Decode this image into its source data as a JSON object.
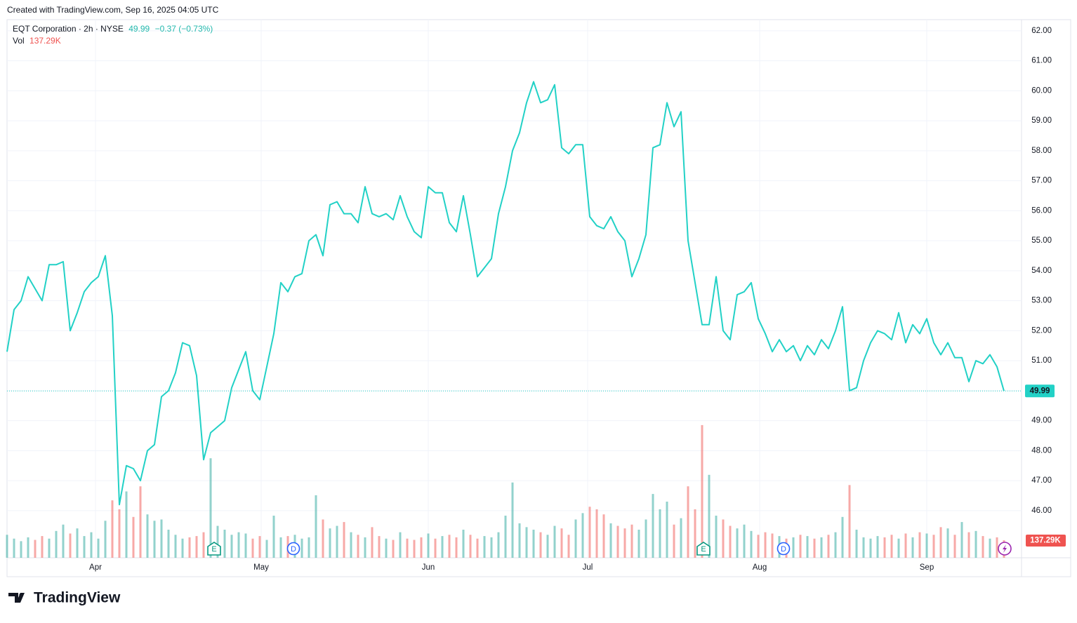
{
  "created": "Created with TradingView.com, Sep 16, 2025 04:05 UTC",
  "brand": "TradingView",
  "chart_data": {
    "type": "line",
    "title": "EQT Corporation · 2h · NYSE",
    "change": "−0.37 (−0.73%)",
    "color": "#22d1c6",
    "grid": true,
    "x": [
      0,
      1,
      2,
      3,
      4,
      5,
      6,
      7,
      8,
      9,
      10,
      11,
      12,
      13,
      14,
      15,
      16,
      17,
      18,
      19,
      20,
      21,
      22,
      23,
      24,
      25,
      26,
      27,
      28,
      29,
      30,
      31,
      32,
      33,
      34,
      35,
      36,
      37,
      38,
      39,
      40,
      41,
      42,
      43,
      44,
      45,
      46,
      47,
      48,
      49,
      50,
      51,
      52,
      53,
      54,
      55,
      56,
      57,
      58,
      59,
      60,
      61,
      62,
      63,
      64,
      65,
      66,
      67,
      68,
      69,
      70,
      71,
      72,
      73,
      74,
      75,
      76,
      77,
      78,
      79,
      80,
      81,
      82,
      83,
      84,
      85,
      86,
      87,
      88,
      89,
      90,
      91,
      92,
      93,
      94,
      95,
      96,
      97,
      98,
      99,
      100,
      101,
      102,
      103,
      104,
      105,
      106,
      107,
      108,
      109,
      110,
      111,
      112,
      113,
      114,
      115,
      116,
      117,
      118,
      119,
      120,
      121,
      122,
      123,
      124,
      125,
      126,
      127,
      128,
      129,
      130,
      131,
      132,
      133,
      134,
      135,
      136,
      137,
      138,
      139,
      140,
      141,
      142
    ],
    "values": [
      51.3,
      52.7,
      53.0,
      53.8,
      53.4,
      53.0,
      54.2,
      54.2,
      54.3,
      52.0,
      52.6,
      53.3,
      53.6,
      53.8,
      54.5,
      52.5,
      46.2,
      47.5,
      47.4,
      47.0,
      48.0,
      48.2,
      49.8,
      50.0,
      50.6,
      51.6,
      51.5,
      50.5,
      47.7,
      48.6,
      48.8,
      49.0,
      50.1,
      50.7,
      51.3,
      50.0,
      49.7,
      50.8,
      51.9,
      53.6,
      53.3,
      53.8,
      53.9,
      55.0,
      55.2,
      54.5,
      56.2,
      56.3,
      55.9,
      55.9,
      55.6,
      56.8,
      55.9,
      55.8,
      55.9,
      55.7,
      56.5,
      55.8,
      55.3,
      55.1,
      56.8,
      56.6,
      56.6,
      55.6,
      55.3,
      56.5,
      55.2,
      53.8,
      54.1,
      54.4,
      55.9,
      56.8,
      58.0,
      58.6,
      59.6,
      60.3,
      59.6,
      59.7,
      60.2,
      58.1,
      57.9,
      58.2,
      58.2,
      55.8,
      55.5,
      55.4,
      55.8,
      55.3,
      55.0,
      53.8,
      54.4,
      55.2,
      58.1,
      58.2,
      59.6,
      58.8,
      59.3,
      55.0,
      53.6,
      52.2,
      52.2,
      53.8,
      52.0,
      51.7,
      53.2,
      53.3,
      53.6,
      52.4,
      51.9,
      51.3,
      51.7,
      51.3,
      51.5,
      51.0,
      51.5,
      51.2,
      51.7,
      51.4,
      52.0,
      52.8,
      50.0,
      50.1,
      51.0,
      51.6,
      52.0,
      51.9,
      51.7,
      52.6,
      51.6,
      52.2,
      51.9,
      52.4,
      51.6,
      51.2,
      51.6,
      51.1,
      51.1,
      50.3,
      51.0,
      50.9,
      51.2,
      50.8,
      49.99
    ],
    "xlim": [
      0,
      144.5
    ],
    "xticks": [
      {
        "value": 12.6,
        "label": "Apr"
      },
      {
        "value": 36.2,
        "label": "May"
      },
      {
        "value": 60,
        "label": "Jun"
      },
      {
        "value": 82.7,
        "label": "Jul"
      },
      {
        "value": 107.2,
        "label": "Aug"
      },
      {
        "value": 131,
        "label": "Sep"
      }
    ],
    "ylim": [
      44.43,
      62.37
    ],
    "yticks": [
      {
        "value": 46,
        "label": "46.00"
      },
      {
        "value": 47,
        "label": "47.00"
      },
      {
        "value": 48,
        "label": "48.00"
      },
      {
        "value": 49,
        "label": "49.00"
      },
      {
        "value": 50,
        "label": "50.00"
      },
      {
        "value": 51,
        "label": "51.00"
      },
      {
        "value": 52,
        "label": "52.00"
      },
      {
        "value": 53,
        "label": "53.00"
      },
      {
        "value": 54,
        "label": "54.00"
      },
      {
        "value": 55,
        "label": "55.00"
      },
      {
        "value": 56,
        "label": "56.00"
      },
      {
        "value": 57,
        "label": "57.00"
      },
      {
        "value": 58,
        "label": "58.00"
      },
      {
        "value": 59,
        "label": "59.00"
      },
      {
        "value": 60,
        "label": "60.00"
      },
      {
        "value": 61,
        "label": "61.00"
      },
      {
        "value": 62,
        "label": "62.00"
      }
    ],
    "volume": {
      "name": "Vol",
      "up_color": "#26a69a",
      "down_color": "#ef5350",
      "ylim": [
        0,
        1100000
      ],
      "values": [
        180000,
        150000,
        130000,
        160000,
        140000,
        170000,
        150000,
        210000,
        260000,
        190000,
        230000,
        170000,
        200000,
        150000,
        290000,
        450000,
        380000,
        520000,
        320000,
        560000,
        340000,
        290000,
        300000,
        220000,
        180000,
        150000,
        160000,
        170000,
        200000,
        780000,
        250000,
        220000,
        180000,
        200000,
        190000,
        150000,
        170000,
        140000,
        330000,
        160000,
        170000,
        180000,
        150000,
        160000,
        490000,
        300000,
        230000,
        250000,
        280000,
        200000,
        180000,
        160000,
        240000,
        170000,
        150000,
        140000,
        200000,
        150000,
        140000,
        160000,
        190000,
        150000,
        170000,
        180000,
        160000,
        220000,
        180000,
        150000,
        170000,
        160000,
        200000,
        330000,
        590000,
        270000,
        240000,
        220000,
        200000,
        180000,
        250000,
        230000,
        180000,
        300000,
        350000,
        400000,
        380000,
        340000,
        270000,
        250000,
        230000,
        260000,
        220000,
        300000,
        500000,
        380000,
        440000,
        260000,
        310000,
        560000,
        380000,
        1040000,
        650000,
        330000,
        300000,
        250000,
        230000,
        260000,
        210000,
        180000,
        200000,
        190000,
        170000,
        150000,
        160000,
        180000,
        170000,
        150000,
        160000,
        180000,
        200000,
        320000,
        570000,
        220000,
        160000,
        150000,
        170000,
        160000,
        180000,
        150000,
        190000,
        160000,
        200000,
        190000,
        180000,
        240000,
        230000,
        180000,
        280000,
        200000,
        210000,
        170000,
        150000,
        160000,
        137290
      ],
      "value_labels": [
        null,
        null,
        null,
        null,
        null,
        null,
        null,
        null,
        null,
        null,
        null,
        null,
        null,
        null,
        null,
        null,
        null,
        null,
        null,
        null,
        null,
        null,
        null,
        null,
        null,
        null,
        null,
        null,
        null,
        null,
        null,
        null,
        null,
        null,
        null,
        null,
        null,
        null,
        null,
        null,
        null,
        null,
        null,
        null,
        null,
        null,
        null,
        null,
        null,
        null,
        null,
        null,
        null,
        null,
        null,
        null,
        null,
        null,
        null,
        null,
        null,
        null,
        null,
        null,
        null,
        null,
        null,
        null,
        null,
        null,
        null,
        null,
        null,
        null,
        null,
        null,
        null,
        null,
        null,
        null,
        null,
        null,
        null,
        null,
        null,
        null,
        null,
        null,
        null,
        null,
        null,
        null,
        null,
        null,
        null,
        null,
        null,
        null,
        null,
        null,
        null,
        null,
        null,
        null,
        null,
        null,
        null,
        null,
        null,
        null,
        null,
        null,
        null,
        null,
        null,
        null,
        null,
        null,
        null,
        null,
        null,
        null,
        null,
        null,
        null,
        null,
        null,
        null,
        null,
        null,
        null,
        null,
        null,
        null,
        null,
        null,
        null,
        null,
        null,
        null,
        null,
        null,
        "137.29K"
      ]
    },
    "events": [
      {
        "x": 29.5,
        "label": "E"
      },
      {
        "x": 40.8,
        "label": "D"
      },
      {
        "x": 99.2,
        "label": "E"
      },
      {
        "x": 110.6,
        "label": "D"
      }
    ]
  }
}
